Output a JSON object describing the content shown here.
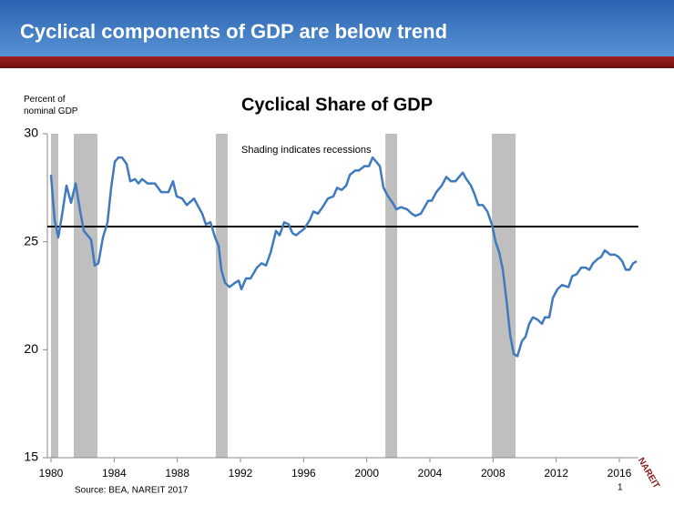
{
  "header": {
    "title": "Cyclical components of GDP are below trend"
  },
  "chart_data": {
    "type": "line",
    "title": "Cyclical Share of GDP",
    "y_axis_label": "Percent of nominal GDP",
    "annotation": "Shading indicates recessions",
    "source": "Source: BEA, NAREIT 2017",
    "x": [
      1980.0,
      1980.23,
      1980.46,
      1980.69,
      1980.98,
      1981.27,
      1981.56,
      1981.85,
      1982.08,
      1982.54,
      1982.77,
      1983.0,
      1983.29,
      1983.58,
      1983.81,
      1984.04,
      1984.27,
      1984.5,
      1984.79,
      1985.02,
      1985.31,
      1985.54,
      1985.77,
      1986.12,
      1986.58,
      1986.98,
      1987.44,
      1987.73,
      1987.96,
      1988.31,
      1988.6,
      1989.06,
      1989.35,
      1989.58,
      1989.81,
      1990.1,
      1990.39,
      1990.62,
      1990.79,
      1991.02,
      1991.31,
      1991.66,
      1991.89,
      1992.06,
      1992.35,
      1992.64,
      1993.04,
      1993.33,
      1993.62,
      1993.91,
      1994.25,
      1994.48,
      1994.77,
      1995.06,
      1995.29,
      1995.52,
      1995.87,
      1996.04,
      1996.39,
      1996.62,
      1996.91,
      1997.2,
      1997.54,
      1997.89,
      1998.12,
      1998.41,
      1998.7,
      1998.93,
      1999.27,
      1999.5,
      1999.85,
      2000.14,
      2000.37,
      2000.6,
      2000.83,
      2001.06,
      2001.35,
      2001.64,
      2001.87,
      2002.16,
      2002.56,
      2002.85,
      2003.08,
      2003.43,
      2003.66,
      2003.89,
      2004.12,
      2004.41,
      2004.75,
      2005.04,
      2005.33,
      2005.62,
      2006.08,
      2006.31,
      2006.6,
      2006.83,
      2007.06,
      2007.35,
      2007.64,
      2007.93,
      2008.16,
      2008.39,
      2008.62,
      2008.85,
      2009.08,
      2009.31,
      2009.54,
      2009.83,
      2010.06,
      2010.29,
      2010.52,
      2010.81,
      2011.1,
      2011.28,
      2011.56,
      2011.79,
      2012.08,
      2012.37,
      2012.78,
      2013.01,
      2013.3,
      2013.58,
      2013.87,
      2014.1,
      2014.33,
      2014.62,
      2014.85,
      2015.08,
      2015.43,
      2015.72,
      2015.95,
      2016.18,
      2016.41,
      2016.64,
      2016.87,
      2017.1
    ],
    "series": [
      {
        "name": "Cyclical share",
        "color": "#3f79be",
        "values": [
          28.1,
          26.0,
          25.2,
          26.2,
          27.6,
          26.8,
          27.7,
          26.4,
          25.5,
          25.1,
          23.9,
          24.0,
          25.2,
          25.9,
          27.5,
          28.7,
          28.9,
          28.9,
          28.6,
          27.8,
          27.9,
          27.7,
          27.9,
          27.7,
          27.7,
          27.3,
          27.3,
          27.8,
          27.1,
          27.0,
          26.7,
          27.0,
          26.6,
          26.3,
          25.8,
          25.9,
          25.2,
          24.8,
          23.7,
          23.1,
          22.9,
          23.1,
          23.2,
          22.8,
          23.3,
          23.3,
          23.8,
          24.0,
          23.9,
          24.5,
          25.5,
          25.3,
          25.9,
          25.8,
          25.4,
          25.3,
          25.5,
          25.6,
          26.0,
          26.4,
          26.3,
          26.6,
          27.0,
          27.1,
          27.5,
          27.4,
          27.6,
          28.1,
          28.3,
          28.3,
          28.5,
          28.5,
          28.9,
          28.7,
          28.5,
          27.5,
          27.1,
          26.8,
          26.5,
          26.6,
          26.5,
          26.3,
          26.2,
          26.3,
          26.6,
          26.9,
          26.9,
          27.3,
          27.6,
          28.0,
          27.8,
          27.8,
          28.2,
          27.9,
          27.6,
          27.2,
          26.7,
          26.7,
          26.4,
          25.8,
          25.0,
          24.5,
          23.7,
          22.3,
          20.7,
          19.8,
          19.7,
          20.4,
          20.6,
          21.2,
          21.5,
          21.4,
          21.2,
          21.5,
          21.5,
          22.4,
          22.8,
          23.0,
          22.9,
          23.4,
          23.5,
          23.8,
          23.8,
          23.7,
          24.0,
          24.2,
          24.3,
          24.6,
          24.4,
          24.4,
          24.3,
          24.1,
          23.7,
          23.7,
          24.0,
          24.1
        ]
      }
    ],
    "recessions": [
      [
        1980.0,
        1980.46
      ],
      [
        1981.44,
        1982.94
      ],
      [
        1990.44,
        1991.19
      ],
      [
        2001.18,
        2001.93
      ],
      [
        2007.93,
        2009.43
      ]
    ],
    "recession_color": "#bfbfbf",
    "trend": 25.7,
    "xlim": [
      1980,
      2017.2
    ],
    "xticks": [
      1980,
      1984,
      1988,
      1992,
      1996,
      2000,
      2004,
      2008,
      2012,
      2016
    ],
    "ylim": [
      15,
      30
    ],
    "yticks": [
      15,
      20,
      25,
      30
    ]
  },
  "footer": {
    "page": "1",
    "logo": "NAREIT"
  }
}
